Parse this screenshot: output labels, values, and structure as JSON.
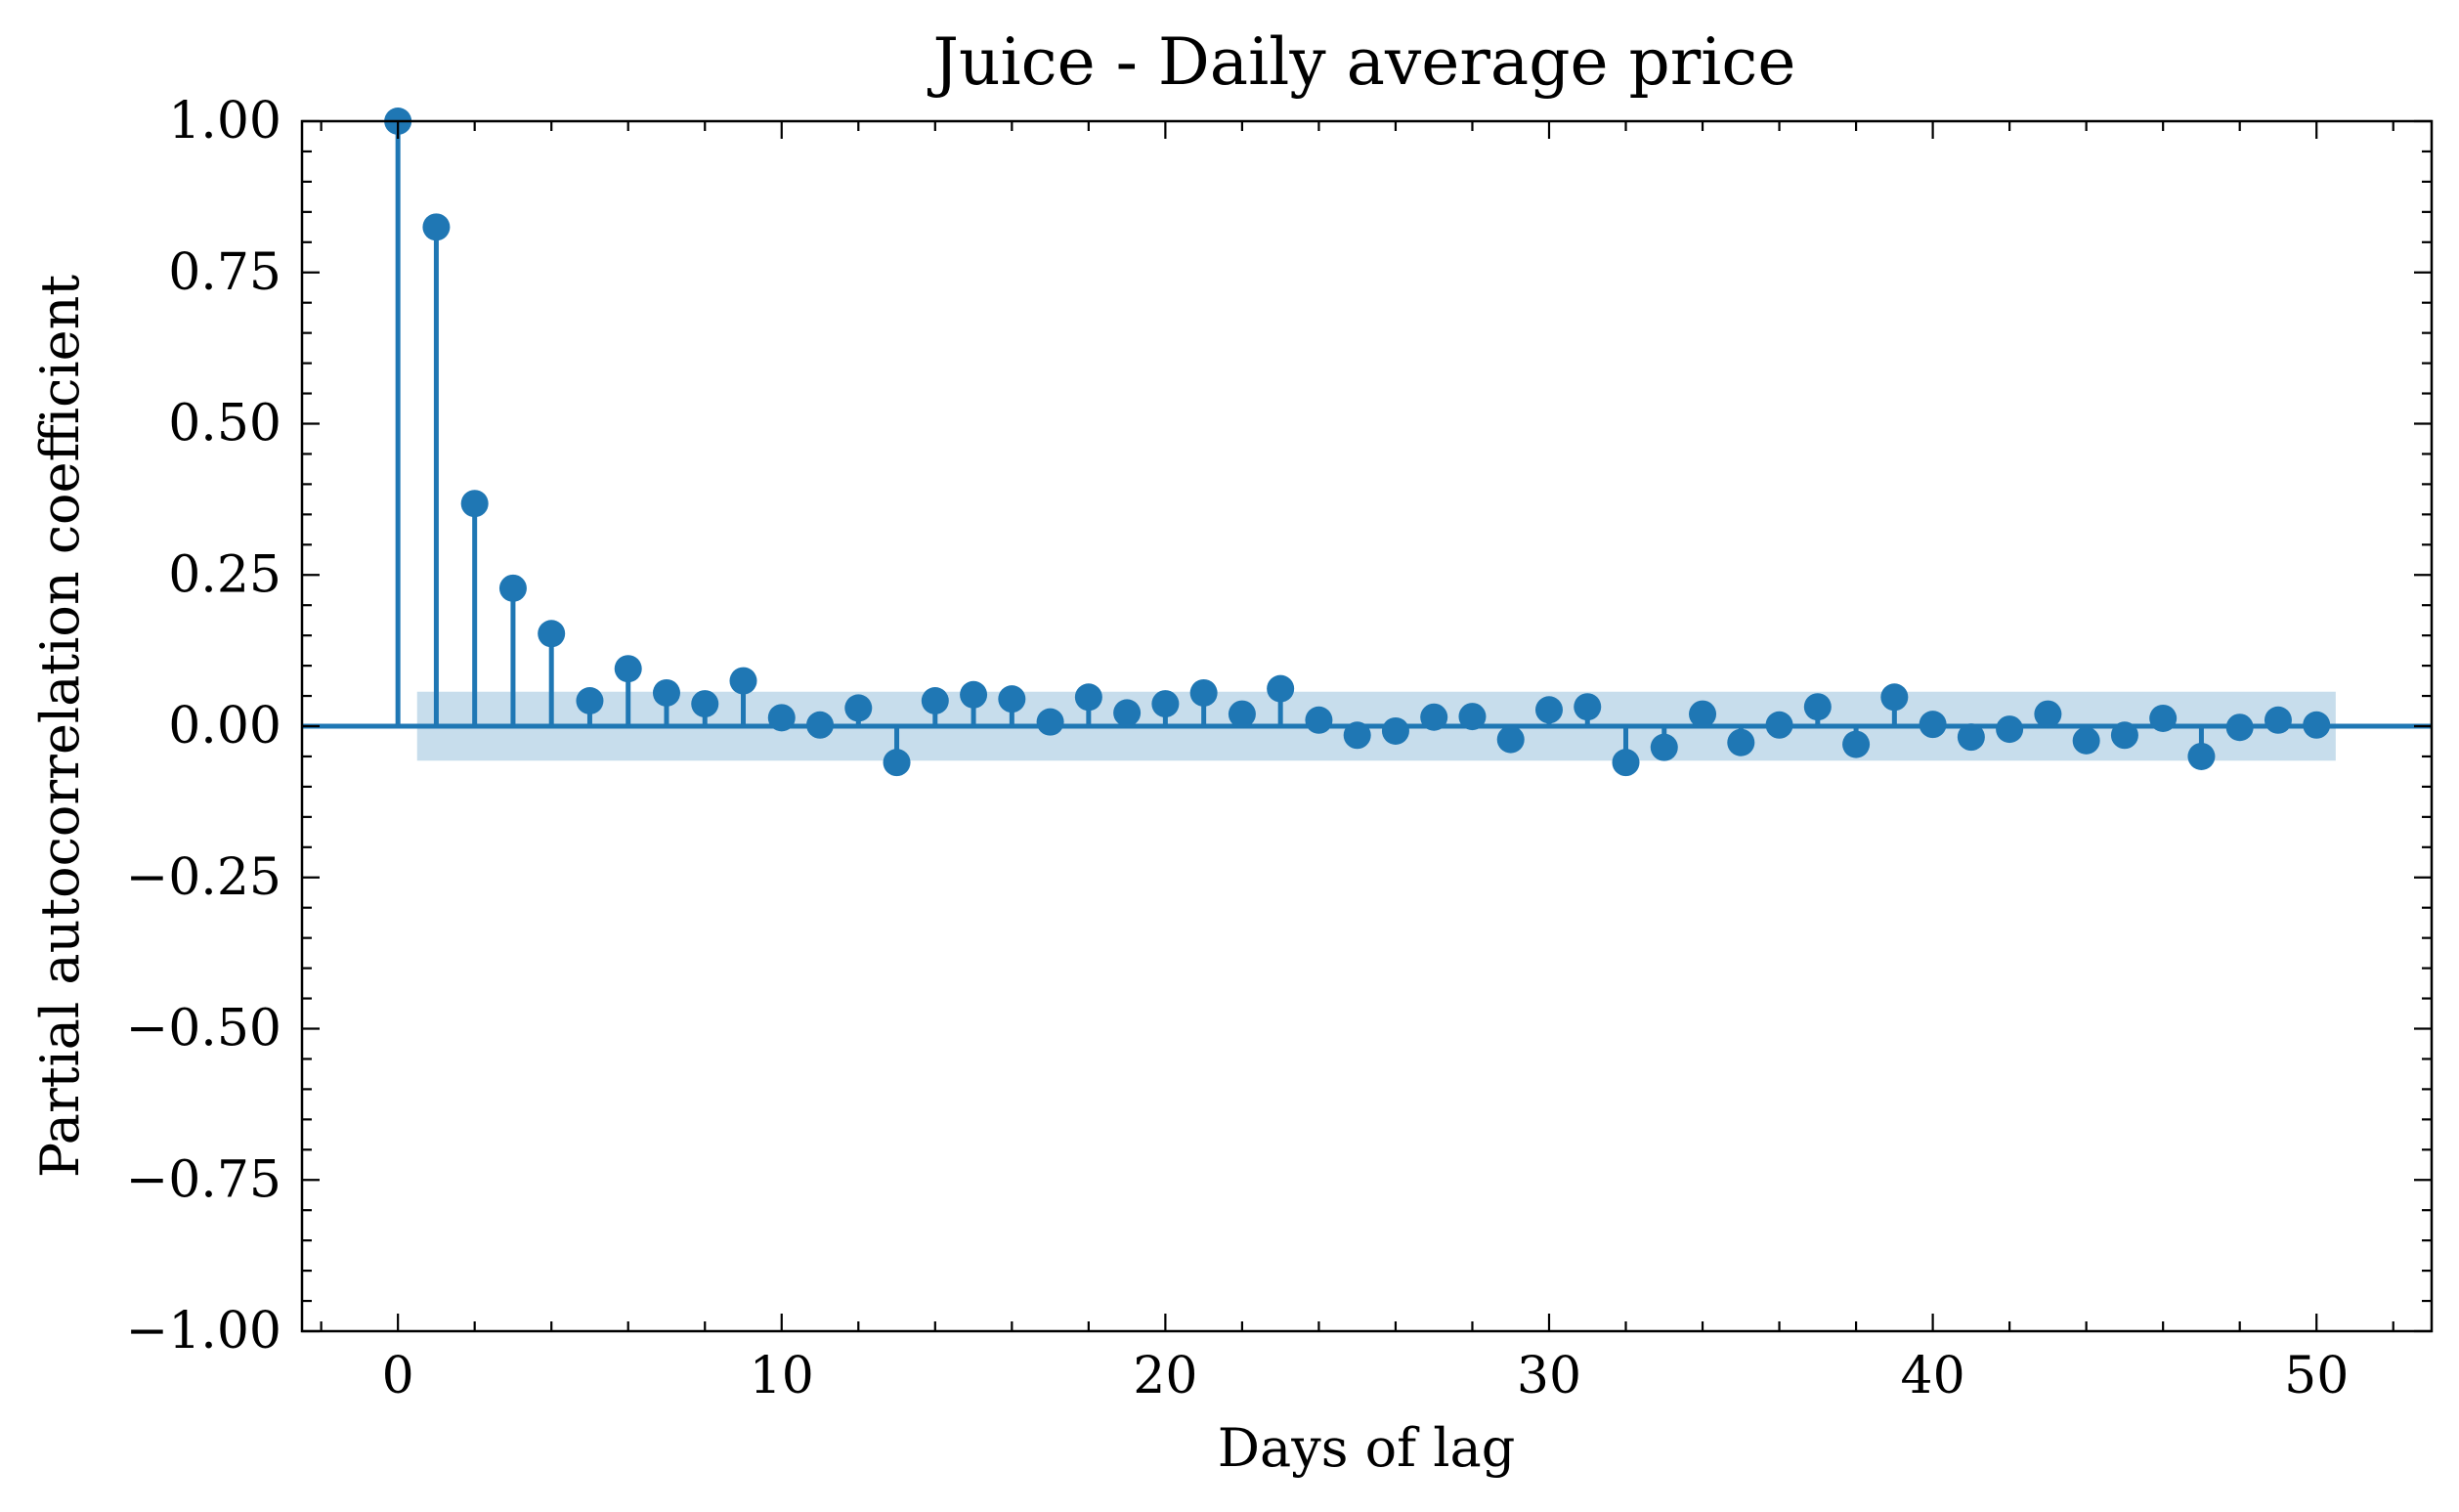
{
  "chart_data": {
    "type": "stem",
    "title": "Juice - Daily average price",
    "xlabel": "Days of lag",
    "ylabel": "Partial autocorrelation coefficient",
    "xlim": [
      -2.5,
      53
    ],
    "ylim": [
      -1.0,
      1.0
    ],
    "x_ticks": [
      0,
      10,
      20,
      30,
      40,
      50
    ],
    "x_tick_labels": [
      "0",
      "10",
      "20",
      "30",
      "40",
      "50"
    ],
    "y_ticks": [
      1.0,
      0.75,
      0.5,
      0.25,
      0.0,
      -0.25,
      -0.5,
      -0.75,
      -1.0
    ],
    "y_tick_labels": [
      "1.00",
      "0.75",
      "0.50",
      "0.25",
      "0.00",
      "−0.25",
      "−0.50",
      "−0.75",
      "−1.00"
    ],
    "grid": false,
    "confidence_band": {
      "x_range": [
        0.5,
        50.5
      ],
      "lower": -0.057,
      "upper": 0.057
    },
    "series": [
      {
        "x": [
          0,
          1,
          2,
          3,
          4,
          5,
          6,
          7,
          8,
          9,
          10,
          11,
          12,
          13,
          14,
          15,
          16,
          17,
          18,
          19,
          20,
          21,
          22,
          23,
          24,
          25,
          26,
          27,
          28,
          29,
          30,
          31,
          32,
          33,
          34,
          35,
          36,
          37,
          38,
          39,
          40,
          41,
          42,
          43,
          44,
          45,
          46,
          47,
          48,
          49,
          50
        ],
        "values": [
          1.0,
          0.825,
          0.368,
          0.228,
          0.153,
          0.042,
          0.095,
          0.055,
          0.037,
          0.075,
          0.014,
          0.002,
          0.03,
          -0.06,
          0.042,
          0.052,
          0.045,
          0.007,
          0.048,
          0.022,
          0.037,
          0.055,
          0.02,
          0.062,
          0.01,
          -0.015,
          -0.008,
          0.015,
          0.016,
          -0.022,
          0.027,
          0.032,
          -0.06,
          -0.035,
          0.02,
          -0.027,
          0.002,
          0.032,
          -0.03,
          0.048,
          0.003,
          -0.018,
          -0.005,
          0.02,
          -0.024,
          -0.015,
          0.013,
          -0.05,
          -0.002,
          0.01,
          0.002
        ],
        "color": "#1f77b4"
      }
    ],
    "colors": {
      "series": "#1f77b4",
      "band": "#1f77b4",
      "axes": "#000000"
    }
  }
}
